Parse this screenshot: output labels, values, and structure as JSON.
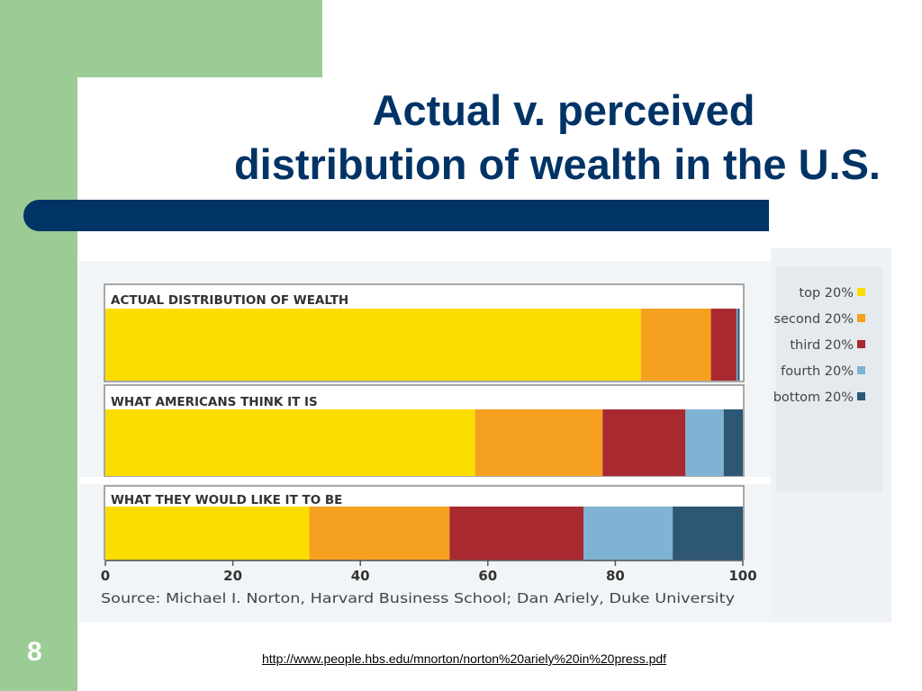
{
  "slide": {
    "title_line1": "Actual v. perceived",
    "title_line2": "distribution of wealth in the U.S.",
    "page_number": "8",
    "link": "http://www.people.hbs.edu/mnorton/norton%20ariely%20in%20press.pdf",
    "colors": {
      "sidebar": "#9ccc95",
      "title": "#003366",
      "rule": "#003366"
    }
  },
  "chart_data": {
    "type": "bar",
    "orientation": "horizontal",
    "stacked": true,
    "categories": [
      "ACTUAL DISTRIBUTION OF WEALTH",
      "WHAT AMERICANS THINK IT IS",
      "WHAT THEY WOULD LIKE IT TO BE"
    ],
    "series": [
      {
        "name": "top 20%",
        "color": "#fbdd00",
        "values": [
          84,
          58,
          32
        ]
      },
      {
        "name": "second 20%",
        "color": "#f6a020",
        "values": [
          11,
          20,
          22
        ]
      },
      {
        "name": "third 20%",
        "color": "#a82a30",
        "values": [
          4,
          13,
          21
        ]
      },
      {
        "name": "fourth 20%",
        "color": "#7fb3d3",
        "values": [
          0.2,
          6,
          14
        ]
      },
      {
        "name": "bottom 20%",
        "color": "#2d5775",
        "values": [
          0.3,
          3,
          11
        ]
      }
    ],
    "xlim": [
      0,
      100
    ],
    "xticks": [
      "0",
      "20",
      "40",
      "60",
      "80",
      "100"
    ],
    "source": "Source: Michael I. Norton, Harvard Business School; Dan Ariely, Duke University",
    "legend_position": "right"
  }
}
